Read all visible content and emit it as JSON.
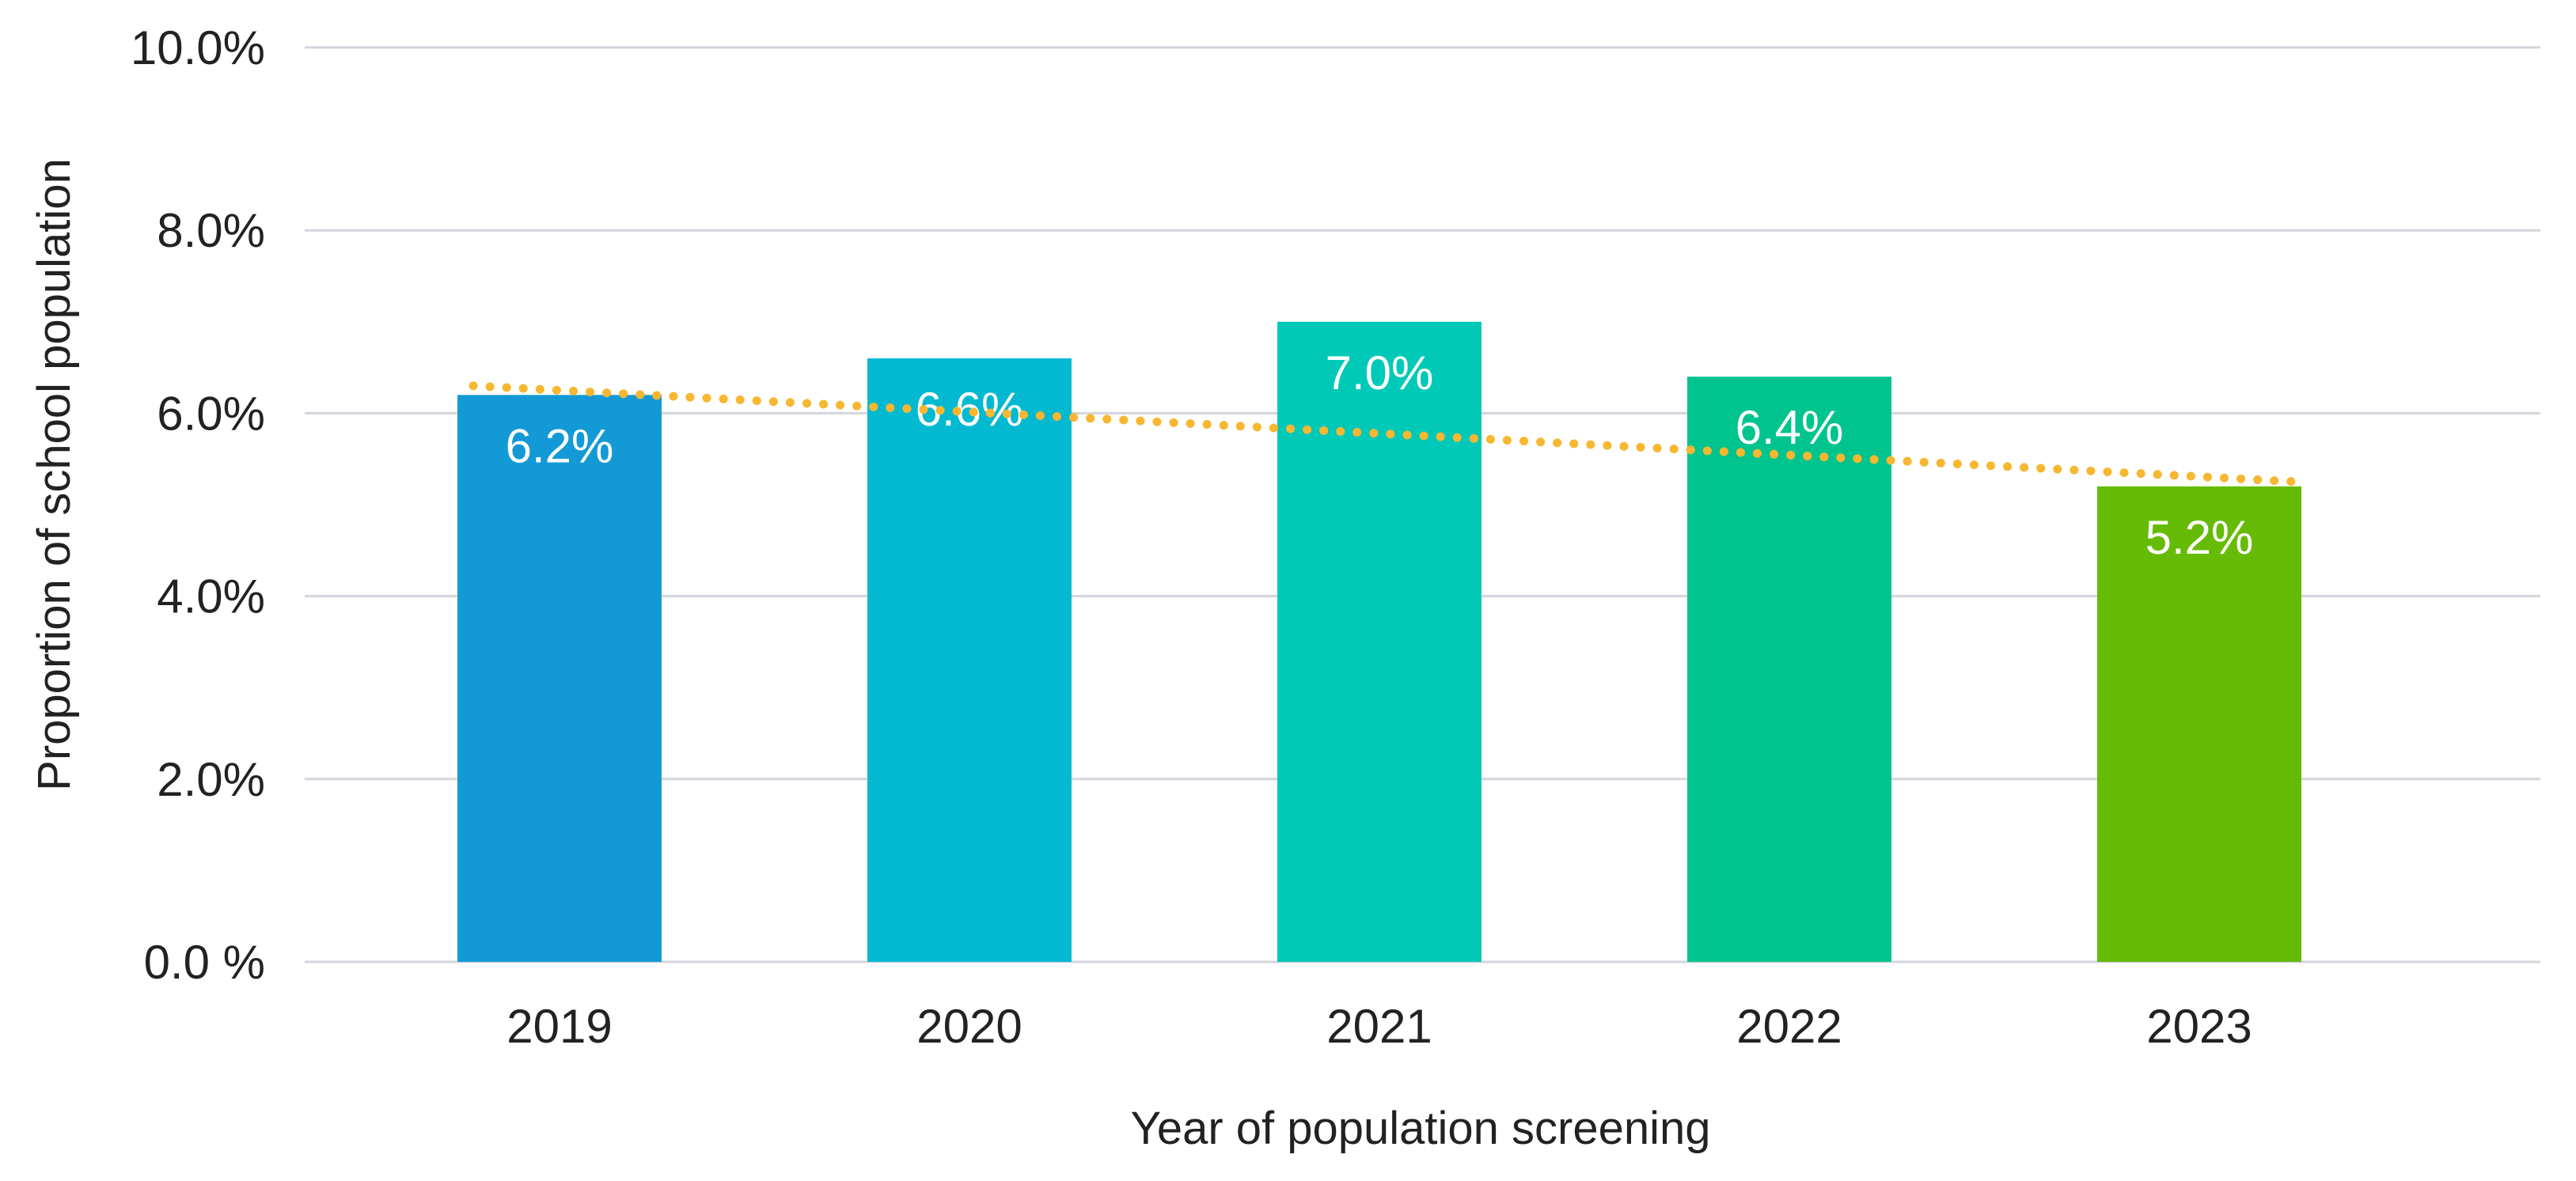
{
  "chart_data": {
    "type": "bar",
    "title": "",
    "xlabel": "Year of population screening",
    "ylabel": "Proportion of school population",
    "categories": [
      "2019",
      "2020",
      "2021",
      "2022",
      "2023"
    ],
    "values": [
      6.2,
      6.6,
      7.0,
      6.4,
      5.2
    ],
    "data_labels": [
      "6.2%",
      "6.6%",
      "7.0%",
      "6.4%",
      "5.2%"
    ],
    "bar_colors": [
      "#139ad6",
      "#02b9d1",
      "#00c9b8",
      "#00c48d",
      "#66bb06"
    ],
    "ylim": [
      0,
      10
    ],
    "yticks": [
      0,
      2,
      4,
      6,
      8,
      10
    ],
    "ytick_labels": [
      "0.0 %",
      "2.0%",
      "4.0%",
      "6.0%",
      "8.0%",
      "10.0%"
    ],
    "grid": true,
    "legend": "none",
    "trendline": {
      "type": "linear",
      "style": "dotted",
      "color": "#f7b731",
      "start_value": 6.3,
      "end_value": 5.25
    }
  }
}
